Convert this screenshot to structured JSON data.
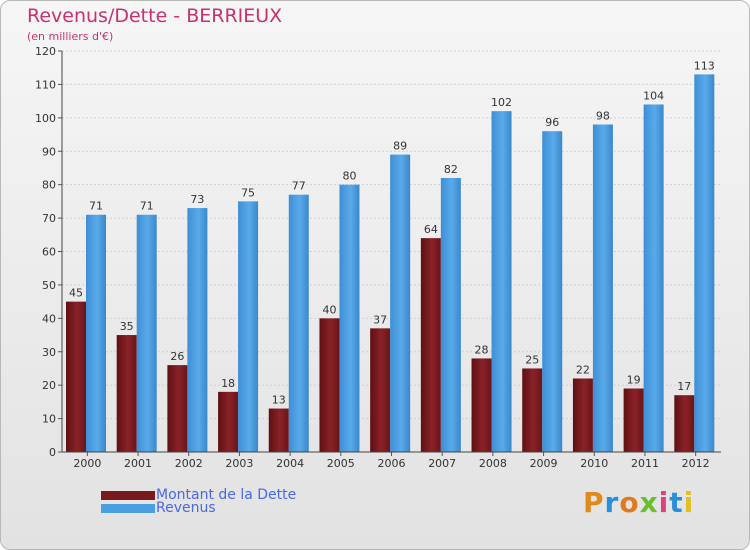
{
  "chart_data": {
    "type": "bar",
    "title": "Revenus/Dette - BERRIEUX",
    "subtitle": "(en milliers d'€)",
    "xlabel": "",
    "ylabel": "",
    "ylim": [
      0,
      120
    ],
    "yticks": [
      "0",
      "10",
      "20",
      "30",
      "40",
      "50",
      "60",
      "70",
      "80",
      "90",
      "100",
      "110",
      "120"
    ],
    "grid": true,
    "legend_position": "bottom-left",
    "categories": [
      "2000",
      "2001",
      "2002",
      "2003",
      "2004",
      "2005",
      "2006",
      "2007",
      "2008",
      "2009",
      "2010",
      "2011",
      "2012"
    ],
    "series": [
      {
        "name": "Montant de la Dette",
        "color": "#7a1a1e",
        "values": [
          45,
          35,
          26,
          18,
          13,
          40,
          37,
          64,
          28,
          25,
          22,
          19,
          17
        ]
      },
      {
        "name": "Revenus",
        "color": "#4a9fe0",
        "values": [
          71,
          71,
          73,
          75,
          77,
          80,
          89,
          82,
          102,
          96,
          98,
          104,
          113
        ]
      }
    ]
  },
  "logo": {
    "letters": [
      "P",
      "r",
      "o",
      "x",
      "i",
      "t",
      "i"
    ],
    "colors": [
      "#e08a1e",
      "#2a8fd8",
      "#e07a1e",
      "#6abf2a",
      "#e04080",
      "#2a8fd8",
      "#e0c020"
    ]
  }
}
